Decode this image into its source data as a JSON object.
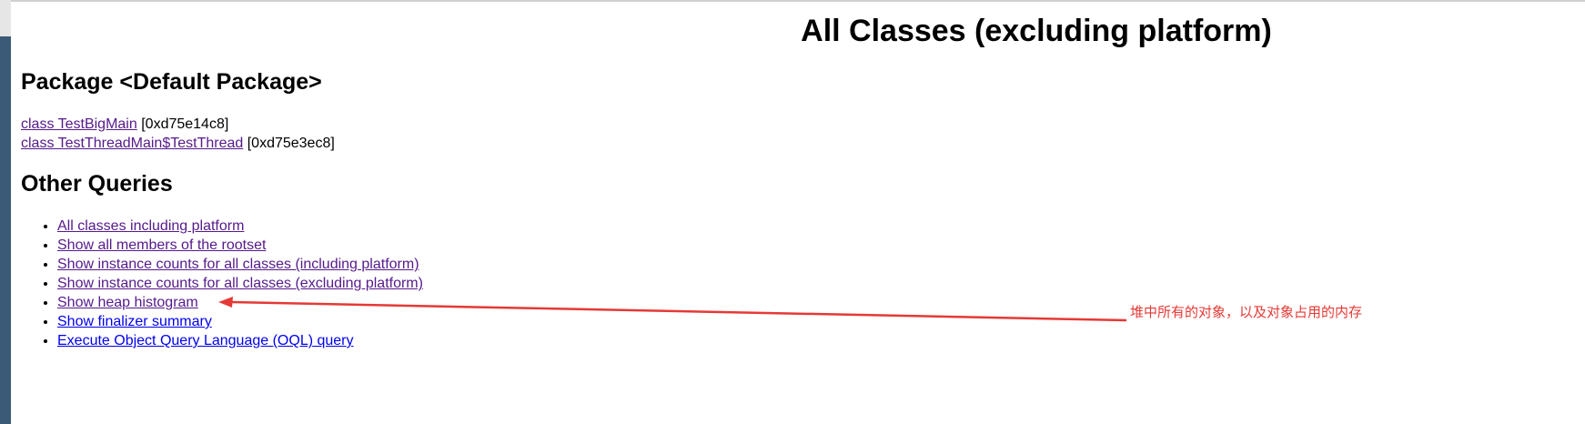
{
  "page": {
    "title": "All Classes (excluding platform)"
  },
  "package_section": {
    "heading": "Package <Default Package>",
    "classes": [
      {
        "link": "class TestBigMain",
        "address": "[0xd75e14c8]"
      },
      {
        "link": "class TestThreadMain$TestThread",
        "address": "[0xd75e3ec8]"
      }
    ]
  },
  "queries_section": {
    "heading": "Other Queries",
    "items": [
      {
        "label": "All classes including platform",
        "visited": true
      },
      {
        "label": "Show all members of the rootset",
        "visited": true
      },
      {
        "label": "Show instance counts for all classes (including platform)",
        "visited": true
      },
      {
        "label": "Show instance counts for all classes (excluding platform)",
        "visited": true
      },
      {
        "label": "Show heap histogram",
        "visited": true
      },
      {
        "label": "Show finalizer summary",
        "visited": false
      },
      {
        "label": "Execute Object Query Language (OQL) query",
        "visited": false
      }
    ]
  },
  "annotation": {
    "text": "堆中所有的对象，以及对象占用的内存",
    "color": "#e53935"
  },
  "colors": {
    "visited_link": "#551a8b",
    "unvisited_link": "#0000ee"
  }
}
